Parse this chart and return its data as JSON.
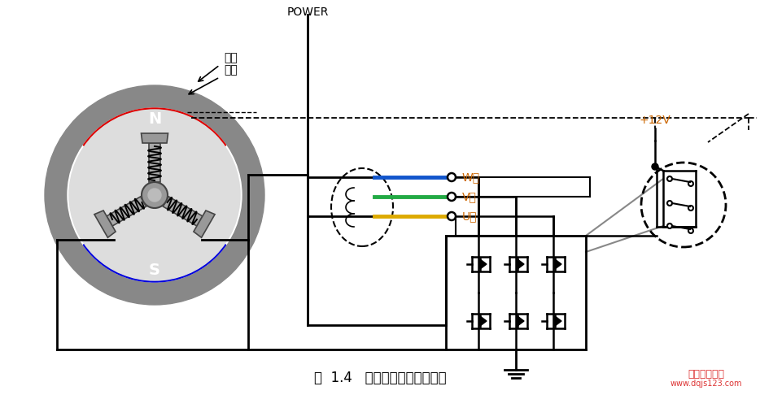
{
  "title": "图  1.4   无刷直流电机转动原理",
  "bg_color": "#ffffff",
  "outer_ring_color": "#888888",
  "magnet_N_color": "#dd0000",
  "magnet_S_color": "#0000dd",
  "stator_color": "#aaaaaa",
  "line_color": "#000000",
  "wire_W_color": "#1155cc",
  "wire_V_color": "#22aa44",
  "wire_U_color": "#ddaa00",
  "text_label_color": "#cc6600",
  "label_rotor": "转子",
  "label_stator": "定子",
  "label_N": "N",
  "label_S": "S",
  "label_W": "W相",
  "label_V": "V相",
  "label_U": "U相",
  "label_POWER": "POWER",
  "label_12V": "+12V",
  "watermark1": "电工技术之家",
  "watermark2": "www.dqjs123.com"
}
